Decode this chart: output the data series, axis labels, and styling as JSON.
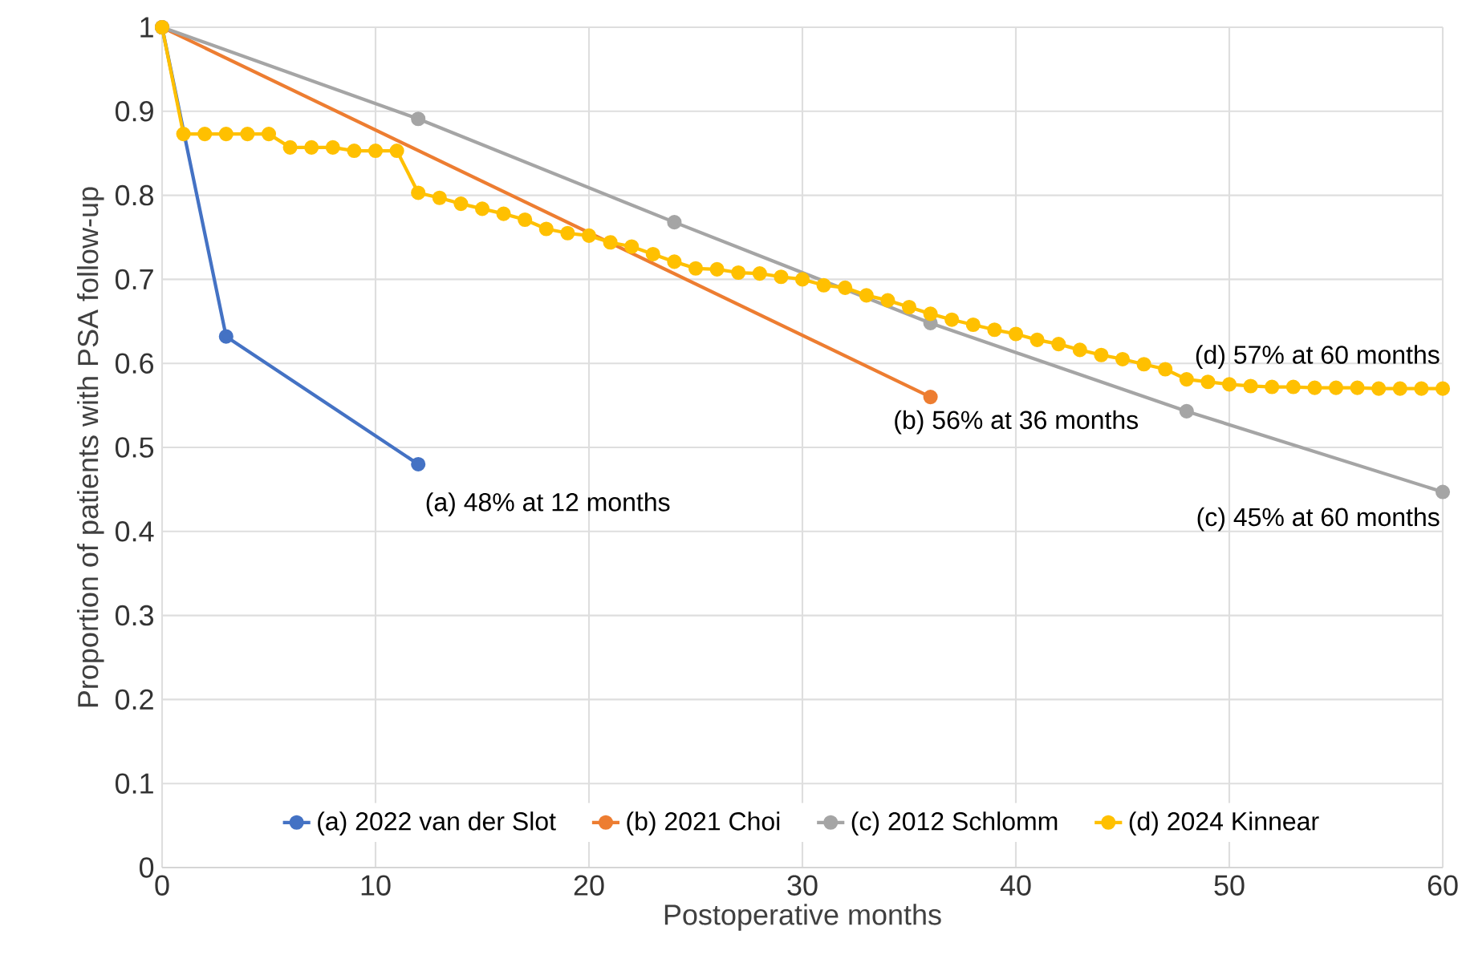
{
  "chart_data": {
    "type": "line",
    "xlabel": "Postoperative months",
    "ylabel": "Proportion of patients with PSA follow-up",
    "xlim": [
      0,
      60
    ],
    "xticks": [
      0,
      10,
      20,
      30,
      40,
      50,
      60
    ],
    "ylim": [
      0,
      1
    ],
    "yticks": [
      0,
      0.1,
      0.2,
      0.3,
      0.4,
      0.5,
      0.6,
      0.7,
      0.8,
      0.9,
      1
    ],
    "grid": true,
    "legend": "bottom",
    "marker": "circle",
    "line_style": "solid",
    "series": [
      {
        "name": "(a) 2022 van der Slot",
        "color": "#4472c4",
        "x": [
          0,
          3,
          12
        ],
        "values": [
          1,
          0.632,
          0.48
        ]
      },
      {
        "name": "(b) 2021 Choi",
        "color": "#ed7d31",
        "x": [
          0,
          36
        ],
        "values": [
          1,
          0.56
        ]
      },
      {
        "name": "(c) 2012 Schlomm",
        "color": "#a5a5a5",
        "x": [
          0,
          12,
          24,
          36,
          48,
          60
        ],
        "values": [
          1,
          0.891,
          0.768,
          0.648,
          0.543,
          0.447
        ]
      },
      {
        "name": "(d) 2024 Kinnear",
        "color": "#ffc000",
        "x": [
          0,
          1,
          2,
          3,
          4,
          5,
          6,
          7,
          8,
          9,
          10,
          11,
          12,
          13,
          14,
          15,
          16,
          17,
          18,
          19,
          20,
          21,
          22,
          23,
          24,
          25,
          26,
          27,
          28,
          29,
          30,
          31,
          32,
          33,
          34,
          35,
          36,
          37,
          38,
          39,
          40,
          41,
          42,
          43,
          44,
          45,
          46,
          47,
          48,
          49,
          50,
          51,
          52,
          53,
          54,
          55,
          56,
          57,
          58,
          59,
          60
        ],
        "values": [
          1,
          0.873,
          0.873,
          0.873,
          0.873,
          0.873,
          0.857,
          0.857,
          0.857,
          0.853,
          0.853,
          0.853,
          0.803,
          0.797,
          0.79,
          0.784,
          0.778,
          0.771,
          0.76,
          0.755,
          0.752,
          0.744,
          0.739,
          0.73,
          0.721,
          0.713,
          0.712,
          0.708,
          0.707,
          0.703,
          0.7,
          0.693,
          0.69,
          0.681,
          0.675,
          0.667,
          0.659,
          0.652,
          0.646,
          0.64,
          0.635,
          0.628,
          0.623,
          0.616,
          0.61,
          0.605,
          0.599,
          0.593,
          0.581,
          0.578,
          0.575,
          0.573,
          0.572,
          0.572,
          0.571,
          0.571,
          0.571,
          0.57,
          0.57,
          0.57,
          0.57
        ]
      }
    ],
    "annotations": [
      {
        "text": "(a) 48% at 12 months",
        "x": 12,
        "y": 0.48
      },
      {
        "text": "(b) 56% at 36 months",
        "x": 36,
        "y": 0.56
      },
      {
        "text": "(c) 45% at 60 months",
        "x": 60,
        "y": 0.447
      },
      {
        "text": "(d) 57% at 60 months",
        "x": 60,
        "y": 0.57
      }
    ]
  }
}
